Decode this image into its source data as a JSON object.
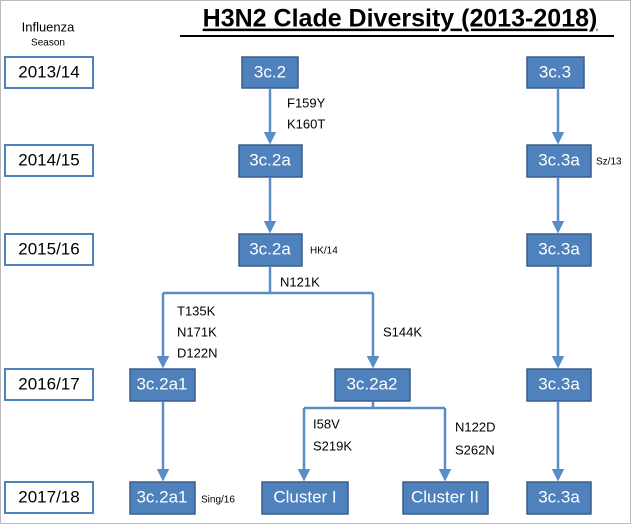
{
  "title": "H3N2 Clade Diversity (2013-2018)",
  "season_header": [
    "Influenza",
    "Season"
  ],
  "seasons": [
    "2013/14",
    "2014/15",
    "2015/16",
    "2016/17",
    "2017/18"
  ],
  "nodes": [
    "3c.2",
    "3c.3",
    "3c.2a",
    "3c.3a",
    "3c.2a",
    "3c.3a",
    "3c.2a1",
    "3c.2a2",
    "3c.3a",
    "3c.2a1",
    "Cluster I",
    "Cluster II",
    "3c.3a"
  ],
  "annotations": [
    "F159Y",
    "K160T",
    "Sz/13",
    "HK/14",
    "N121K",
    "T135K",
    "N171K",
    "D122N",
    "S144K",
    "I58V",
    "S219K",
    "N122D",
    "S262N",
    "Sing/16"
  ]
}
